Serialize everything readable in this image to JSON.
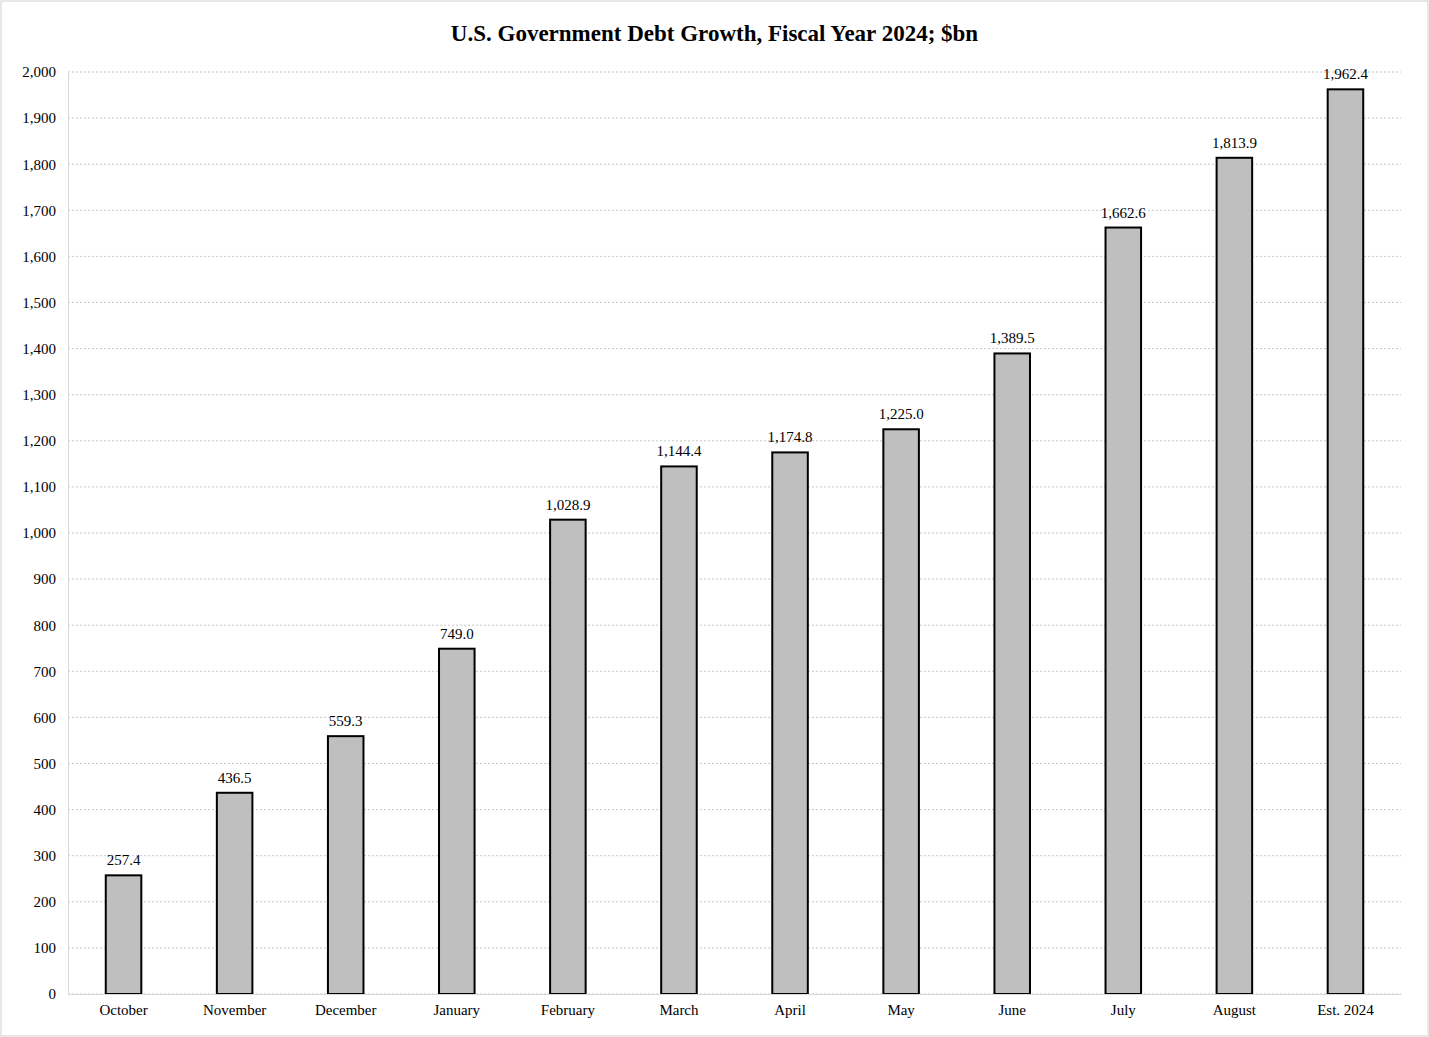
{
  "chart_data": {
    "type": "bar",
    "title": "U.S. Government Debt Growth, Fiscal Year 2024; $bn",
    "categories": [
      "October",
      "November",
      "December",
      "January",
      "February",
      "March",
      "April",
      "May",
      "June",
      "July",
      "August",
      "Est. 2024"
    ],
    "values": [
      257.4,
      436.5,
      559.3,
      749.0,
      1028.9,
      1144.4,
      1174.8,
      1225.0,
      1389.5,
      1662.6,
      1813.9,
      1962.4
    ],
    "value_labels": [
      "257.4",
      "436.5",
      "559.3",
      "749.0",
      "1,028.9",
      "1,144.4",
      "1,174.8",
      "1,225.0",
      "1,389.5",
      "1,662.6",
      "1,813.9",
      "1,962.4"
    ],
    "color": "#bfbfbf",
    "ylim": [
      0,
      2000
    ],
    "yticks": [
      0,
      100,
      200,
      300,
      400,
      500,
      600,
      700,
      800,
      900,
      {
        "value": 1000,
        "label": "1,000"
      },
      {
        "value": 1100,
        "label": "1,100"
      },
      {
        "value": 1200,
        "label": "1,200"
      },
      {
        "value": 1300,
        "label": "1,300"
      },
      {
        "value": 1400,
        "label": "1,400"
      },
      {
        "value": 1500,
        "label": "1,500"
      },
      {
        "value": 1600,
        "label": "1,600"
      },
      {
        "value": 1700,
        "label": "1,700"
      },
      {
        "value": 1800,
        "label": "1,800"
      },
      {
        "value": 1900,
        "label": "1,900"
      },
      {
        "value": 2000,
        "label": "2,000"
      }
    ],
    "grid": true,
    "data_labels": true
  }
}
